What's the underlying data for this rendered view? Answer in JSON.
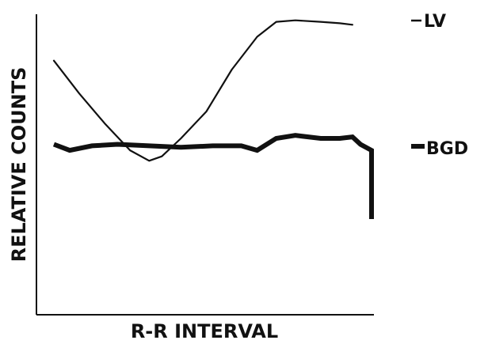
{
  "chart_data": {
    "type": "line",
    "title": "",
    "xlabel": "R-R INTERVAL",
    "ylabel": "RELATIVE COUNTS",
    "grid": false,
    "legend": "right",
    "x_ticks": [],
    "y_ticks": [],
    "xlim": [
      0,
      100
    ],
    "ylim": [
      0,
      100
    ],
    "series": [
      {
        "name": "LV",
        "color": "#111111",
        "line_weight": "thin",
        "x": [
          0,
          8,
          16,
          24,
          30,
          34,
          40,
          48,
          56,
          64,
          70,
          76,
          84,
          90,
          94
        ],
        "y": [
          85,
          74,
          64,
          55,
          51.5,
          53,
          59,
          68,
          82,
          93,
          98,
          98.5,
          98,
          97.5,
          97
        ]
      },
      {
        "name": "BGD",
        "color": "#111111",
        "line_weight": "thick",
        "x": [
          0,
          5,
          12,
          20,
          30,
          40,
          50,
          59,
          64,
          70,
          76,
          84,
          90,
          94,
          96.5,
          100,
          100
        ],
        "y": [
          57,
          55,
          56.5,
          57,
          56.5,
          56,
          56.5,
          56.5,
          55,
          59,
          60,
          59,
          59,
          59.5,
          57,
          55,
          32
        ]
      }
    ]
  }
}
